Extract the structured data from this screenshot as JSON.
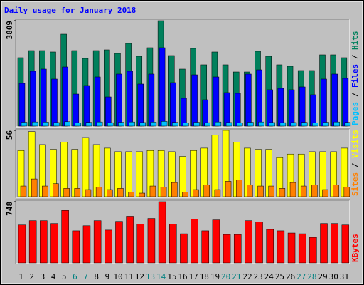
{
  "chart_data": {
    "type": "bar",
    "title": "Daily usage for January 2018",
    "categories": [
      "1",
      "2",
      "3",
      "4",
      "5",
      "6",
      "7",
      "8",
      "9",
      "10",
      "11",
      "12",
      "13",
      "14",
      "15",
      "16",
      "17",
      "18",
      "19",
      "20",
      "21",
      "22",
      "23",
      "24",
      "25",
      "26",
      "27",
      "28",
      "29",
      "30",
      "31"
    ],
    "category_colors": [
      "#000000",
      "#000000",
      "#000000",
      "#000000",
      "#000000",
      "#008080",
      "#008080",
      "#000000",
      "#000000",
      "#000000",
      "#000000",
      "#000000",
      "#008080",
      "#008080",
      "#000000",
      "#000000",
      "#000000",
      "#000000",
      "#000000",
      "#008080",
      "#008080",
      "#000000",
      "#000000",
      "#000000",
      "#000000",
      "#000000",
      "#008080",
      "#008080",
      "#000000",
      "#000000",
      "#000000"
    ],
    "panels": [
      {
        "ylim": [
          0,
          3809
        ],
        "yticks": [
          3809
        ],
        "series": [
          {
            "name": "Hits",
            "color": "#00805c",
            "values": [
              2471,
              2728,
              2728,
              2677,
              3320,
              2728,
              2445,
              2728,
              2754,
              2625,
              2986,
              2522,
              2831,
              3809,
              2548,
              2059,
              2806,
              2214,
              2677,
              2214,
              1956,
              1956,
              2703,
              2522,
              2214,
              2162,
              2008,
              2008,
              2574,
              2574,
              2471
            ]
          },
          {
            "name": "Files",
            "color": "#0000ff",
            "values": [
              1544,
              1982,
              2059,
              1699,
              2136,
              1158,
              1467,
              1776,
              1055,
              1879,
              1982,
              1519,
              1879,
              2831,
              1570,
              1004,
              1853,
              952,
              1776,
              1210,
              1184,
              1879,
              2033,
              1313,
              1364,
              1313,
              1416,
              1133,
              1699,
              1879,
              1725
            ]
          },
          {
            "name": "Pages",
            "color": "#00c0ff",
            "values": [
              140,
              150,
              145,
              130,
              160,
              120,
              135,
              150,
              125,
              140,
              150,
              130,
              145,
              170,
              135,
              120,
              140,
              125,
              150,
              130,
              120,
              140,
              150,
              130,
              125,
              130,
              135,
              120,
              140,
              150,
              135
            ]
          }
        ]
      },
      {
        "ylim": [
          0,
          56
        ],
        "yticks": [
          56
        ],
        "series": [
          {
            "name": "Visits",
            "color": "#ffff00",
            "values": [
              39,
              55,
              44,
              40,
              46,
              40,
              50,
              44,
              41,
              38,
              38,
              38,
              39,
              39,
              38,
              34,
              39,
              41,
              52,
              56,
              46,
              41,
              40,
              40,
              33,
              36,
              36,
              38,
              38,
              38,
              41
            ]
          },
          {
            "name": "Sites",
            "color": "#ff8000",
            "values": [
              9,
              15,
              9,
              11,
              7,
              7,
              6,
              8,
              6,
              7,
              4,
              3,
              9,
              8,
              12,
              4,
              6,
              10,
              6,
              13,
              14,
              10,
              9,
              9,
              7,
              12,
              9,
              10,
              6,
              10,
              8
            ]
          }
        ]
      },
      {
        "ylim": [
          0,
          748
        ],
        "yticks": [
          748
        ],
        "series": [
          {
            "name": "KBytes",
            "color": "#ff0000",
            "values": [
              463,
              516,
              516,
              481,
              641,
              392,
              454,
              516,
              401,
              507,
              570,
              472,
              543,
              748,
              472,
              356,
              534,
              392,
              525,
              347,
              347,
              516,
              498,
              409,
              392,
              365,
              356,
              312,
              481,
              481,
              463
            ]
          }
        ]
      }
    ]
  }
}
